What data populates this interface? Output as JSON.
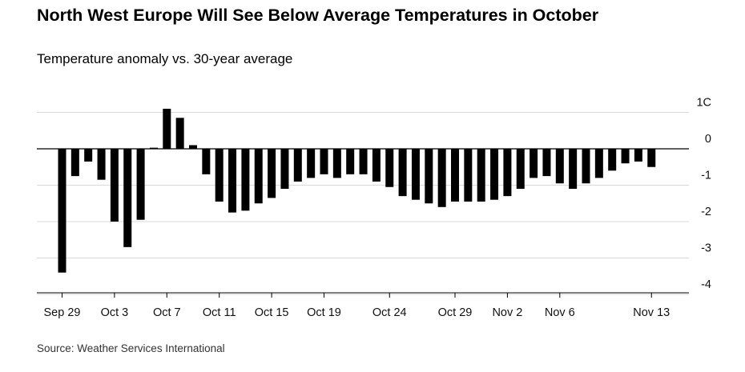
{
  "title": "North West Europe Will See Below Average Temperatures in October",
  "subtitle": "Temperature anomaly vs. 30-year average",
  "source": "Source: Weather Services International",
  "chart_data": {
    "type": "bar",
    "title": "North West Europe Will See Below Average Temperatures in October",
    "subtitle": "Temperature anomaly vs. 30-year average",
    "ylim": [
      -4,
      1
    ],
    "y_ticks": [
      {
        "value": 1,
        "label": "1C"
      },
      {
        "value": 0,
        "label": "0"
      },
      {
        "value": -1,
        "label": "-1"
      },
      {
        "value": -2,
        "label": "-2"
      },
      {
        "value": -3,
        "label": "-3"
      },
      {
        "value": -4,
        "label": "-4"
      }
    ],
    "x_ticks": [
      {
        "index": 0,
        "label": "Sep 29"
      },
      {
        "index": 4,
        "label": "Oct 3"
      },
      {
        "index": 8,
        "label": "Oct 7"
      },
      {
        "index": 12,
        "label": "Oct 11"
      },
      {
        "index": 16,
        "label": "Oct 15"
      },
      {
        "index": 20,
        "label": "Oct 19"
      },
      {
        "index": 25,
        "label": "Oct 24"
      },
      {
        "index": 30,
        "label": "Oct 29"
      },
      {
        "index": 34,
        "label": "Nov 2"
      },
      {
        "index": 38,
        "label": "Nov 6"
      },
      {
        "index": 45,
        "label": "Nov 13"
      }
    ],
    "values": [
      -3.4,
      -0.75,
      -0.35,
      -0.85,
      -2.0,
      -2.7,
      -1.95,
      0.03,
      1.1,
      0.85,
      0.1,
      -0.7,
      -1.45,
      -1.75,
      -1.7,
      -1.5,
      -1.35,
      -1.1,
      -0.9,
      -0.8,
      -0.7,
      -0.8,
      -0.7,
      -0.7,
      -0.9,
      -1.05,
      -1.3,
      -1.4,
      -1.5,
      -1.6,
      -1.45,
      -1.45,
      -1.45,
      -1.4,
      -1.3,
      -1.1,
      -0.8,
      -0.75,
      -0.95,
      -1.1,
      -0.95,
      -0.8,
      -0.6,
      -0.4,
      -0.35,
      -0.5
    ],
    "grid": true,
    "legend": "none",
    "bar_color": "#000000",
    "grid_color": "#d9d9d9"
  }
}
